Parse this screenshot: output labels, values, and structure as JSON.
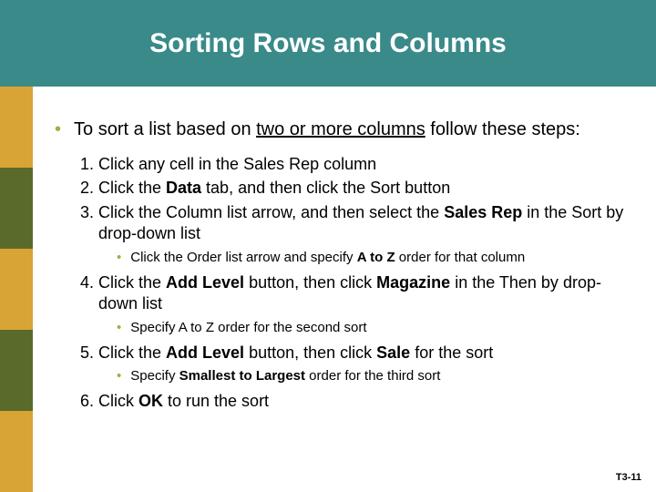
{
  "header": {
    "title": "Sorting Rows and Columns"
  },
  "stripe_colors": [
    "#d9a436",
    "#5a6a2b",
    "#d9a436",
    "#5a6a2b",
    "#d9a436"
  ],
  "intro": {
    "pre": "To sort a list based on ",
    "underlined": "two or more columns",
    "post": " follow these steps:"
  },
  "steps": [
    {
      "html": "Click any cell in the Sales Rep column"
    },
    {
      "html": "Click the <span class='b'>Data</span> tab, and then click the Sort button"
    },
    {
      "html": "Click the Column list arrow, and then select the <span class='b'>Sales Rep</span> in the Sort by drop-down list",
      "sub": "Click the Order list arrow and specify <span class='b'>A to Z</span> order for that column"
    },
    {
      "html": "Click the <span class='b'>Add Level</span> button, then click <span class='b'>Magazine</span> in the Then by drop-down list",
      "sub": "Specify A to Z order for the second sort"
    },
    {
      "html": "Click the <span class='b'>Add Level</span> button, then click <span class='b'>Sale</span> for the sort",
      "sub": "Specify <span class='b'>Smallest to Largest</span> order for the third sort"
    },
    {
      "html": "Click <span class='b'>OK</span> to run the sort"
    }
  ],
  "page_number": "T3-11"
}
